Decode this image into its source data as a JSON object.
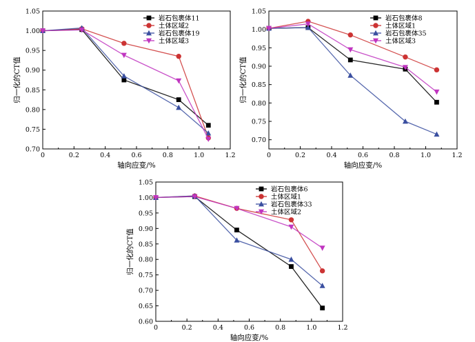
{
  "chart_data": [
    {
      "type": "line",
      "xlabel": "轴向应变/%",
      "ylabel": "归一化的CT值",
      "xlim": [
        0,
        1.2
      ],
      "ylim": [
        0.7,
        1.05
      ],
      "xticks": [
        "0",
        "0.2",
        "0.4",
        "0.6",
        "0.8",
        "1.0",
        "1.2"
      ],
      "yticks": [
        "0.70",
        "0.75",
        "0.80",
        "0.85",
        "0.90",
        "0.95",
        "1.00",
        "1.05"
      ],
      "grid": false,
      "legend_position": "top-right",
      "series": [
        {
          "name": "岩石包裹体11",
          "color": "#000000",
          "marker": "square",
          "x": [
            0,
            0.25,
            0.52,
            0.87,
            1.06
          ],
          "y": [
            1.0,
            1.003,
            0.875,
            0.825,
            0.76
          ]
        },
        {
          "name": "土体区域2",
          "color": "#cc3333",
          "marker": "circle",
          "x": [
            0,
            0.25,
            0.52,
            0.87,
            1.06
          ],
          "y": [
            1.0,
            1.005,
            0.968,
            0.935,
            0.728
          ]
        },
        {
          "name": "岩石包裹体19",
          "color": "#3a4fa0",
          "marker": "triangle-up",
          "x": [
            0,
            0.25,
            0.52,
            0.87,
            1.06
          ],
          "y": [
            1.0,
            1.007,
            0.885,
            0.805,
            0.74
          ]
        },
        {
          "name": "土体区域3",
          "color": "#c035c0",
          "marker": "triangle-down",
          "x": [
            0,
            0.25,
            0.52,
            0.87,
            1.06
          ],
          "y": [
            1.0,
            1.002,
            0.938,
            0.873,
            0.725
          ]
        }
      ]
    },
    {
      "type": "line",
      "xlabel": "轴向应变/%",
      "ylabel": "归一化的CT值",
      "xlim": [
        0,
        1.2
      ],
      "ylim": [
        0.675,
        1.05
      ],
      "xticks": [
        "0",
        "0.2",
        "0.4",
        "0.6",
        "0.8",
        "1.0",
        "1.2"
      ],
      "yticks": [
        "0.70",
        "0.75",
        "0.80",
        "0.85",
        "0.90",
        "0.95",
        "1.00",
        "1.05"
      ],
      "grid": false,
      "legend_position": "top-right",
      "series": [
        {
          "name": "岩石包裹体8",
          "color": "#000000",
          "marker": "square",
          "x": [
            0,
            0.25,
            0.52,
            0.87,
            1.07
          ],
          "y": [
            1.003,
            1.005,
            0.917,
            0.892,
            0.802
          ]
        },
        {
          "name": "土体区域1",
          "color": "#cc3333",
          "marker": "circle",
          "x": [
            0,
            0.25,
            0.52,
            0.87,
            1.07
          ],
          "y": [
            1.003,
            1.022,
            0.985,
            0.925,
            0.89
          ]
        },
        {
          "name": "岩石包裹体35",
          "color": "#3a4fa0",
          "marker": "triangle-up",
          "x": [
            0,
            0.25,
            0.52,
            0.87,
            1.07
          ],
          "y": [
            1.003,
            1.005,
            0.875,
            0.75,
            0.715
          ]
        },
        {
          "name": "土体区域3",
          "color": "#c035c0",
          "marker": "triangle-down",
          "x": [
            0,
            0.25,
            0.52,
            0.87,
            1.07
          ],
          "y": [
            1.003,
            1.015,
            0.945,
            0.897,
            0.83
          ]
        }
      ]
    },
    {
      "type": "line",
      "xlabel": "轴向应变/%",
      "ylabel": "归一化的CT值",
      "xlim": [
        0,
        1.2
      ],
      "ylim": [
        0.6,
        1.05
      ],
      "xticks": [
        "0",
        "0.2",
        "0.4",
        "0.6",
        "0.8",
        "1.0",
        "1.2"
      ],
      "yticks": [
        "0.60",
        "0.65",
        "0.70",
        "0.75",
        "0.80",
        "0.85",
        "0.90",
        "0.95",
        "1.00",
        "1.05"
      ],
      "grid": false,
      "legend_position": "top-right",
      "series": [
        {
          "name": "岩石包裹体6",
          "color": "#000000",
          "marker": "square",
          "x": [
            0,
            0.25,
            0.52,
            0.87,
            1.07
          ],
          "y": [
            1.0,
            1.003,
            0.895,
            0.777,
            0.643
          ]
        },
        {
          "name": "土体区域1",
          "color": "#cc3333",
          "marker": "circle",
          "x": [
            0,
            0.25,
            0.52,
            0.87,
            1.07
          ],
          "y": [
            1.0,
            1.005,
            0.965,
            0.928,
            0.763
          ]
        },
        {
          "name": "岩石包裹体33",
          "color": "#3a4fa0",
          "marker": "triangle-up",
          "x": [
            0,
            0.25,
            0.52,
            0.87,
            1.07
          ],
          "y": [
            1.0,
            1.005,
            0.862,
            0.8,
            0.715
          ]
        },
        {
          "name": "土体区域2",
          "color": "#c035c0",
          "marker": "triangle-down",
          "x": [
            0,
            0.25,
            0.52,
            0.87,
            1.07
          ],
          "y": [
            1.0,
            1.003,
            0.965,
            0.905,
            0.837
          ]
        }
      ]
    }
  ]
}
